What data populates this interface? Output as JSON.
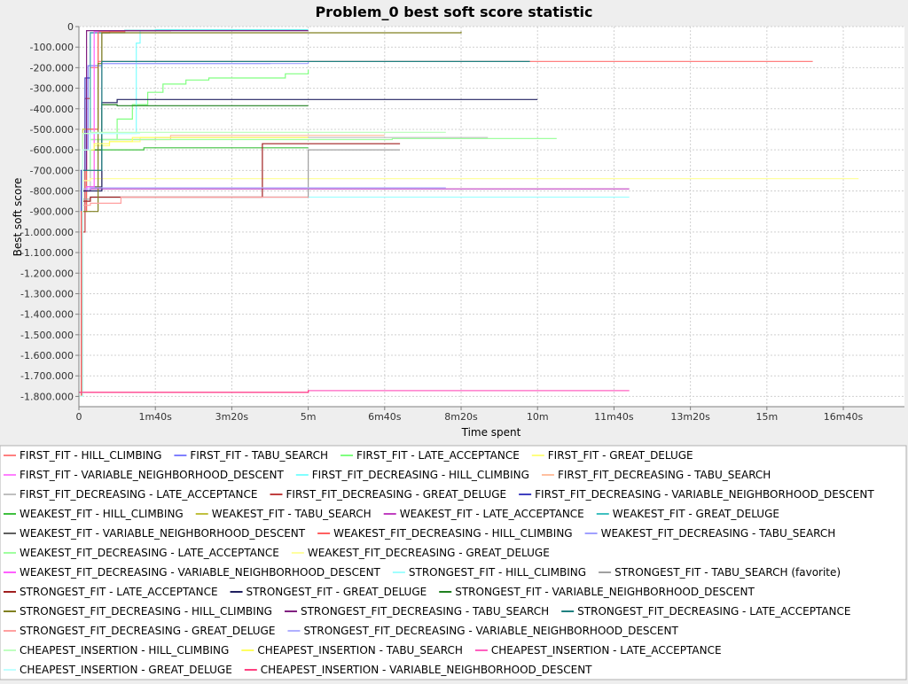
{
  "chart_data": {
    "type": "line",
    "title": "Problem_0 best soft score statistic",
    "xlabel": "Time spent",
    "ylabel": "Best soft score",
    "xlim": [
      0,
      1080
    ],
    "ylim": [
      -1850000,
      0
    ],
    "grid": true,
    "legend_position": "bottom",
    "xticks": [
      {
        "value": 0,
        "label": "0"
      },
      {
        "value": 100,
        "label": "1m40s"
      },
      {
        "value": 200,
        "label": "3m20s"
      },
      {
        "value": 300,
        "label": "5m"
      },
      {
        "value": 400,
        "label": "6m40s"
      },
      {
        "value": 500,
        "label": "8m20s"
      },
      {
        "value": 600,
        "label": "10m"
      },
      {
        "value": 700,
        "label": "11m40s"
      },
      {
        "value": 800,
        "label": "13m20s"
      },
      {
        "value": 900,
        "label": "15m"
      },
      {
        "value": 1000,
        "label": "16m40s"
      }
    ],
    "yticks": [
      {
        "value": 0,
        "label": "0"
      },
      {
        "value": -100000,
        "label": "-100.000"
      },
      {
        "value": -200000,
        "label": "-200.000"
      },
      {
        "value": -300000,
        "label": "-300.000"
      },
      {
        "value": -400000,
        "label": "-400.000"
      },
      {
        "value": -500000,
        "label": "-500.000"
      },
      {
        "value": -600000,
        "label": "-600.000"
      },
      {
        "value": -700000,
        "label": "-700.000"
      },
      {
        "value": -800000,
        "label": "-800.000"
      },
      {
        "value": -900000,
        "label": "-900.000"
      },
      {
        "value": -1000000,
        "label": "-1.000.000"
      },
      {
        "value": -1100000,
        "label": "-1.100.000"
      },
      {
        "value": -1200000,
        "label": "-1.200.000"
      },
      {
        "value": -1300000,
        "label": "-1.300.000"
      },
      {
        "value": -1400000,
        "label": "-1.400.000"
      },
      {
        "value": -1500000,
        "label": "-1.500.000"
      },
      {
        "value": -1600000,
        "label": "-1.600.000"
      },
      {
        "value": -1700000,
        "label": "-1.700.000"
      },
      {
        "value": -1800000,
        "label": "-1.800.000"
      }
    ],
    "series": [
      {
        "name": "FIRST_FIT - HILL_CLIMBING",
        "color": "#ff8080",
        "points": [
          [
            0,
            -1800000
          ],
          [
            3,
            -900000
          ],
          [
            8,
            -500000
          ],
          [
            15,
            -200000
          ],
          [
            25,
            -170000
          ],
          [
            960,
            -170000
          ]
        ]
      },
      {
        "name": "FIRST_FIT - TABU_SEARCH",
        "color": "#8080ff",
        "points": [
          [
            0,
            -1800000
          ],
          [
            5,
            -600000
          ],
          [
            12,
            -190000
          ],
          [
            30,
            -180000
          ],
          [
            250,
            -182000
          ]
        ]
      },
      {
        "name": "FIRST_FIT - LATE_ACCEPTANCE",
        "color": "#80ff80",
        "points": [
          [
            0,
            -1800000
          ],
          [
            5,
            -900000
          ],
          [
            10,
            -700000
          ],
          [
            30,
            -550000
          ],
          [
            50,
            -450000
          ],
          [
            70,
            -380000
          ],
          [
            90,
            -320000
          ],
          [
            110,
            -280000
          ],
          [
            140,
            -260000
          ],
          [
            170,
            -250000
          ],
          [
            250,
            -250000
          ],
          [
            270,
            -230000
          ],
          [
            300,
            -210000
          ]
        ]
      },
      {
        "name": "FIRST_FIT - GREAT_DELUGE",
        "color": "#ffff80",
        "points": [
          [
            0,
            -1800000
          ],
          [
            5,
            -700000
          ],
          [
            20,
            -580000
          ],
          [
            40,
            -560000
          ],
          [
            80,
            -540000
          ],
          [
            300,
            -540000
          ]
        ]
      },
      {
        "name": "FIRST_FIT - VARIABLE_NEIGHBORHOOD_DESCENT",
        "color": "#ff80ff",
        "points": [
          [
            0,
            -1780000
          ],
          [
            300,
            -1775000
          ]
        ]
      },
      {
        "name": "FIRST_FIT_DECREASING - HILL_CLIMBING",
        "color": "#80ffff",
        "points": [
          [
            0,
            -1800000
          ],
          [
            5,
            -520000
          ],
          [
            70,
            -520000
          ],
          [
            75,
            -80000
          ],
          [
            80,
            -20000
          ],
          [
            100,
            -15000
          ],
          [
            300,
            -15000
          ]
        ]
      },
      {
        "name": "FIRST_FIT_DECREASING - TABU_SEARCH",
        "color": "#ffc0a0",
        "points": [
          [
            0,
            -1800000
          ],
          [
            5,
            -600000
          ],
          [
            15,
            -550000
          ],
          [
            100,
            -550000
          ],
          [
            120,
            -530000
          ],
          [
            400,
            -530000
          ]
        ]
      },
      {
        "name": "FIRST_FIT_DECREASING - LATE_ACCEPTANCE",
        "color": "#c0c0c0",
        "points": [
          [
            0,
            -1800000
          ],
          [
            5,
            -800000
          ],
          [
            15,
            -550000
          ],
          [
            50,
            -550000
          ],
          [
            100,
            -540000
          ],
          [
            535,
            -540000
          ]
        ]
      },
      {
        "name": "FIRST_FIT_DECREASING - GREAT_DELUGE",
        "color": "#c04040",
        "points": [
          [
            0,
            -1800000
          ],
          [
            3,
            -1000000
          ],
          [
            8,
            -350000
          ],
          [
            15,
            -30000
          ],
          [
            40,
            -20000
          ],
          [
            120,
            -18000
          ]
        ]
      },
      {
        "name": "FIRST_FIT_DECREASING - VARIABLE_NEIGHBORHOOD_DESCENT",
        "color": "#4040c0",
        "points": [
          [
            0,
            -1800000
          ],
          [
            3,
            -700000
          ],
          [
            8,
            -250000
          ],
          [
            15,
            -30000
          ],
          [
            20,
            -25000
          ]
        ]
      },
      {
        "name": "WEAKEST_FIT - HILL_CLIMBING",
        "color": "#40c040",
        "points": [
          [
            0,
            -1800000
          ],
          [
            5,
            -600000
          ],
          [
            60,
            -600000
          ],
          [
            85,
            -590000
          ],
          [
            300,
            -590000
          ]
        ]
      },
      {
        "name": "WEAKEST_FIT - TABU_SEARCH",
        "color": "#c0c040",
        "points": [
          [
            0,
            -1800000
          ],
          [
            5,
            -500000
          ],
          [
            25,
            -30000
          ],
          [
            40,
            -20000
          ],
          [
            60,
            -18000
          ]
        ]
      },
      {
        "name": "WEAKEST_FIT - LATE_ACCEPTANCE",
        "color": "#c040c0",
        "points": [
          [
            0,
            -1800000
          ],
          [
            5,
            -800000
          ],
          [
            15,
            -790000
          ],
          [
            720,
            -790000
          ]
        ]
      },
      {
        "name": "WEAKEST_FIT - GREAT_DELUGE",
        "color": "#40c0c0",
        "points": [
          [
            0,
            -1800000
          ],
          [
            5,
            -700000
          ],
          [
            15,
            -30000
          ],
          [
            60,
            -18000
          ],
          [
            300,
            -18000
          ]
        ]
      },
      {
        "name": "WEAKEST_FIT - VARIABLE_NEIGHBORHOOD_DESCENT",
        "color": "#606060",
        "points": [
          [
            0,
            -1800000
          ],
          [
            5,
            -800000
          ],
          [
            10,
            -780000
          ],
          [
            30,
            -30000
          ],
          [
            40,
            -25000
          ]
        ]
      },
      {
        "name": "WEAKEST_FIT_DECREASING - HILL_CLIMBING",
        "color": "#ff6060",
        "points": [
          [
            0,
            -1800000
          ],
          [
            3,
            -900000
          ],
          [
            10,
            -500000
          ],
          [
            25,
            -25000
          ],
          [
            60,
            -20000
          ]
        ]
      },
      {
        "name": "WEAKEST_FIT_DECREASING - TABU_SEARCH",
        "color": "#a0a0ff",
        "points": [
          [
            0,
            -1800000
          ],
          [
            5,
            -700000
          ],
          [
            30,
            -180000
          ],
          [
            250,
            -180000
          ],
          [
            300,
            -170000
          ]
        ]
      },
      {
        "name": "WEAKEST_FIT_DECREASING - LATE_ACCEPTANCE",
        "color": "#a0ffa0",
        "points": [
          [
            0,
            -1800000
          ],
          [
            5,
            -700000
          ],
          [
            15,
            -550000
          ],
          [
            300,
            -550000
          ],
          [
            410,
            -545000
          ],
          [
            625,
            -545000
          ]
        ]
      },
      {
        "name": "WEAKEST_FIT_DECREASING - GREAT_DELUGE",
        "color": "#ffffa0",
        "points": [
          [
            0,
            -1800000
          ],
          [
            5,
            -750000
          ],
          [
            15,
            -740000
          ],
          [
            1020,
            -740000
          ]
        ]
      },
      {
        "name": "WEAKEST_FIT_DECREASING - VARIABLE_NEIGHBORHOOD_DESCENT",
        "color": "#ff60ff",
        "points": [
          [
            0,
            -1800000
          ],
          [
            5,
            -800000
          ],
          [
            10,
            -780000
          ],
          [
            20,
            -25000
          ],
          [
            25,
            -20000
          ]
        ]
      },
      {
        "name": "STRONGEST_FIT - HILL_CLIMBING",
        "color": "#a0ffff",
        "points": [
          [
            0,
            -1800000
          ],
          [
            5,
            -850000
          ],
          [
            15,
            -830000
          ],
          [
            720,
            -830000
          ]
        ]
      },
      {
        "name": "STRONGEST_FIT - TABU_SEARCH (favorite)",
        "color": "#a0a0a0",
        "points": [
          [
            0,
            -1800000
          ],
          [
            5,
            -840000
          ],
          [
            15,
            -830000
          ],
          [
            300,
            -830000
          ],
          [
            300,
            -600000
          ],
          [
            420,
            -600000
          ]
        ]
      },
      {
        "name": "STRONGEST_FIT - LATE_ACCEPTANCE",
        "color": "#a02020",
        "points": [
          [
            0,
            -1800000
          ],
          [
            5,
            -850000
          ],
          [
            15,
            -830000
          ],
          [
            240,
            -830000
          ],
          [
            240,
            -570000
          ],
          [
            420,
            -570000
          ]
        ]
      },
      {
        "name": "STRONGEST_FIT - GREAT_DELUGE",
        "color": "#202060",
        "points": [
          [
            0,
            -1800000
          ],
          [
            5,
            -800000
          ],
          [
            30,
            -370000
          ],
          [
            50,
            -355000
          ],
          [
            600,
            -355000
          ]
        ]
      },
      {
        "name": "STRONGEST_FIT - VARIABLE_NEIGHBORHOOD_DESCENT",
        "color": "#208020",
        "points": [
          [
            0,
            -1800000
          ],
          [
            5,
            -600000
          ],
          [
            30,
            -380000
          ],
          [
            50,
            -385000
          ],
          [
            300,
            -385000
          ]
        ]
      },
      {
        "name": "STRONGEST_FIT_DECREASING - HILL_CLIMBING",
        "color": "#808020",
        "points": [
          [
            0,
            -1800000
          ],
          [
            5,
            -900000
          ],
          [
            25,
            -180000
          ],
          [
            30,
            -30000
          ],
          [
            500,
            -25000
          ]
        ]
      },
      {
        "name": "STRONGEST_FIT_DECREASING - TABU_SEARCH",
        "color": "#802080",
        "points": [
          [
            0,
            -1800000
          ],
          [
            5,
            -700000
          ],
          [
            10,
            -20000
          ],
          [
            300,
            -20000
          ]
        ]
      },
      {
        "name": "STRONGEST_FIT_DECREASING - LATE_ACCEPTANCE",
        "color": "#208080",
        "points": [
          [
            0,
            -1800000
          ],
          [
            5,
            -700000
          ],
          [
            30,
            -170000
          ],
          [
            50,
            -170000
          ],
          [
            590,
            -170000
          ]
        ]
      },
      {
        "name": "STRONGEST_FIT_DECREASING - GREAT_DELUGE",
        "color": "#ffa0a0",
        "points": [
          [
            0,
            -1800000
          ],
          [
            5,
            -870000
          ],
          [
            15,
            -860000
          ],
          [
            55,
            -860000
          ],
          [
            55,
            -830000
          ],
          [
            300,
            -830000
          ]
        ]
      },
      {
        "name": "STRONGEST_FIT_DECREASING - VARIABLE_NEIGHBORHOOD_DESCENT",
        "color": "#b0b0ff",
        "points": [
          [
            0,
            -1800000
          ],
          [
            5,
            -790000
          ],
          [
            15,
            -785000
          ],
          [
            480,
            -785000
          ]
        ]
      },
      {
        "name": "CHEAPEST_INSERTION - HILL_CLIMBING",
        "color": "#c0ffc0",
        "points": [
          [
            0,
            -1800000
          ],
          [
            5,
            -520000
          ],
          [
            15,
            -515000
          ],
          [
            480,
            -515000
          ]
        ]
      },
      {
        "name": "CHEAPEST_INSERTION - TABU_SEARCH",
        "color": "#ffff60",
        "points": [
          [
            0,
            -1800000
          ],
          [
            5,
            -600000
          ],
          [
            20,
            -570000
          ],
          [
            40,
            -560000
          ],
          [
            70,
            -540000
          ],
          [
            300,
            -540000
          ]
        ]
      },
      {
        "name": "CHEAPEST_INSERTION - LATE_ACCEPTANCE",
        "color": "#ff60c0",
        "points": [
          [
            0,
            -1780000
          ],
          [
            300,
            -1772000
          ],
          [
            720,
            -1772000
          ]
        ]
      },
      {
        "name": "CHEAPEST_INSERTION - GREAT_DELUGE",
        "color": "#c0ffff",
        "points": [
          [
            0,
            -1800000
          ],
          [
            5,
            -600000
          ],
          [
            15,
            -520000
          ],
          [
            80,
            -520000
          ]
        ]
      },
      {
        "name": "CHEAPEST_INSERTION - VARIABLE_NEIGHBORHOOD_DESCENT",
        "color": "#ff4080",
        "points": [
          [
            0,
            -1780000
          ],
          [
            300,
            -1770000
          ]
        ]
      }
    ]
  }
}
